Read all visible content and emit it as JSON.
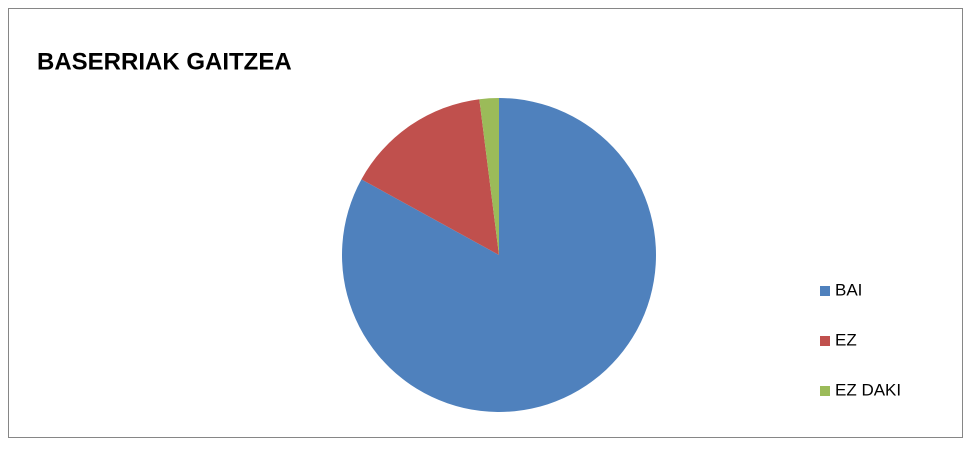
{
  "chart_data": {
    "type": "pie",
    "title": "BASERRIAK GAITZEA",
    "categories": [
      "BAI",
      "EZ",
      "EZ DAKI"
    ],
    "values": [
      83,
      15,
      2
    ],
    "colors": [
      "#4f81bd",
      "#c0504d",
      "#9bbb59"
    ],
    "legend": "right"
  }
}
